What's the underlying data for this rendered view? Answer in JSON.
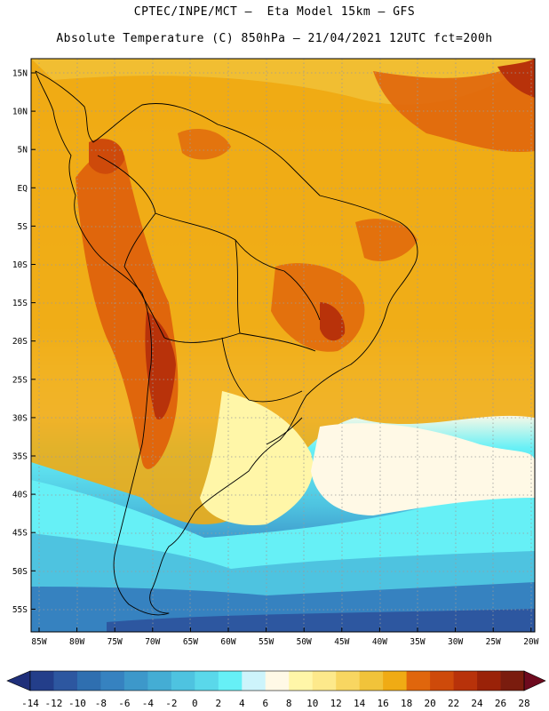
{
  "header": {
    "line1": "CPTEC/INPE/MCT –  Eta Model 15km – GFS",
    "line2": "Absolute Temperature (C) 850hPa – 21/04/2021 12UTC fct=200h"
  },
  "map": {
    "lat_ticks": [
      "15N",
      "10N",
      "5N",
      "EQ",
      "5S",
      "10S",
      "15S",
      "20S",
      "25S",
      "30S",
      "35S",
      "40S",
      "45S",
      "50S",
      "55S"
    ],
    "lon_ticks": [
      "85W",
      "80W",
      "75W",
      "70W",
      "65W",
      "60W",
      "55W",
      "50W",
      "45W",
      "40W",
      "35W",
      "30W",
      "25W",
      "20W"
    ]
  },
  "colorbar": {
    "labels": [
      "-14",
      "-12",
      "-10",
      "-8",
      "-6",
      "-4",
      "-2",
      "0",
      "2",
      "4",
      "6",
      "8",
      "10",
      "12",
      "14",
      "16",
      "18",
      "20",
      "22",
      "24",
      "26",
      "28"
    ],
    "colors": [
      "#233e8a",
      "#2d57a0",
      "#2f6fb0",
      "#3682c0",
      "#3d98ca",
      "#44add4",
      "#4ec3e0",
      "#5ad8ea",
      "#66f0f6",
      "#cdf4fb",
      "#fff9e6",
      "#fff6a8",
      "#fde98b",
      "#f8d661",
      "#f1c33a",
      "#f0ab14",
      "#e0660c",
      "#ce4a0a",
      "#b8320a",
      "#9a2208",
      "#7a1c0e"
    ],
    "under_color": "#1f2f7a",
    "over_color": "#6e0a1e"
  }
}
